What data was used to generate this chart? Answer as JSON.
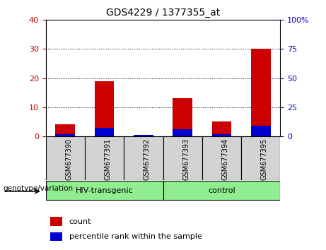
{
  "title": "GDS4229 / 1377355_at",
  "samples": [
    "GSM677390",
    "GSM677391",
    "GSM677392",
    "GSM677393",
    "GSM677394",
    "GSM677395"
  ],
  "count_values": [
    4,
    19,
    0,
    13,
    5,
    30
  ],
  "percentile_values": [
    2,
    7,
    1,
    6,
    2,
    9
  ],
  "ylim_left": [
    0,
    40
  ],
  "ylim_right": [
    0,
    100
  ],
  "yticks_left": [
    0,
    10,
    20,
    30,
    40
  ],
  "yticks_right": [
    0,
    25,
    50,
    75,
    100
  ],
  "groups": [
    {
      "label": "HIV-transgenic",
      "indices": [
        0,
        1,
        2
      ]
    },
    {
      "label": "control",
      "indices": [
        3,
        4,
        5
      ]
    }
  ],
  "group_color": "#90EE90",
  "bar_bg_color": "#d3d3d3",
  "plot_bg_color": "#ffffff",
  "count_color": "#cc0000",
  "percentile_color": "#0000cc",
  "bar_width": 0.5,
  "grid_color": "black",
  "left_tick_color": "#cc0000",
  "right_tick_color": "#0000cc",
  "xlabel": "genotype/variation",
  "legend_items": [
    "count",
    "percentile rank within the sample"
  ],
  "fig_bg_color": "#ffffff"
}
